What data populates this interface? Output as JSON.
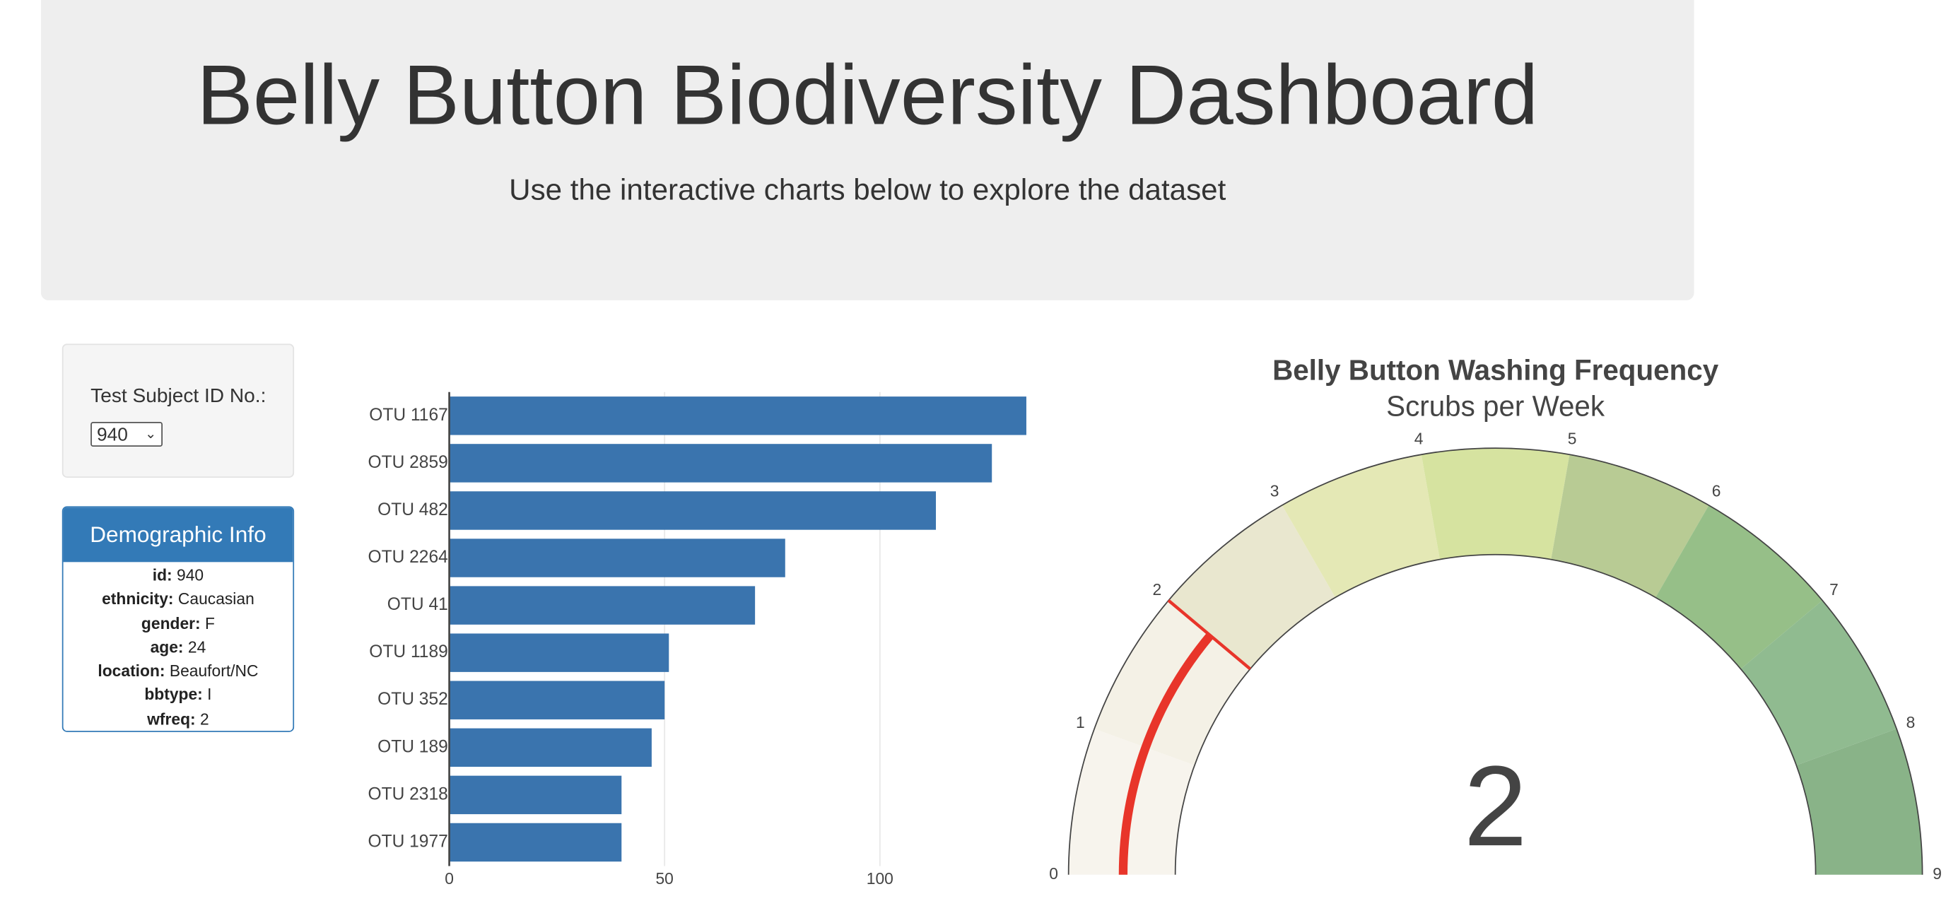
{
  "header": {
    "title": "Belly Button Biodiversity Dashboard",
    "subtitle": "Use the interactive charts below to explore the dataset"
  },
  "selector": {
    "label": "Test Subject ID No.:",
    "selected": "940"
  },
  "demographic": {
    "title": "Demographic Info",
    "rows": [
      {
        "label": "id:",
        "value": "940"
      },
      {
        "label": "ethnicity:",
        "value": "Caucasian"
      },
      {
        "label": "gender:",
        "value": "F"
      },
      {
        "label": "age:",
        "value": "24"
      },
      {
        "label": "location:",
        "value": "Beaufort/NC"
      },
      {
        "label": "bbtype:",
        "value": "I"
      },
      {
        "label": "wfreq:",
        "value": "2"
      }
    ]
  },
  "chart_data": [
    {
      "type": "hbar",
      "categories": [
        "OTU 1167",
        "OTU 2859",
        "OTU 482",
        "OTU 2264",
        "OTU 41",
        "OTU 1189",
        "OTU 352",
        "OTU 189",
        "OTU 2318",
        "OTU 1977"
      ],
      "values": [
        134,
        126,
        113,
        78,
        71,
        51,
        50,
        47,
        40,
        40
      ],
      "color": "#3a74ae",
      "xlim": [
        0,
        134
      ],
      "xticks": [
        0,
        50,
        100
      ],
      "grid": true
    },
    {
      "type": "gauge",
      "title": "Belly Button Washing Frequency",
      "subtitle": "Scrubs per Week",
      "value": 2,
      "threshold": 2,
      "bar_color": "#e8352a",
      "range": [
        0,
        9
      ],
      "ticks": [
        0,
        1,
        2,
        3,
        4,
        5,
        6,
        7,
        8,
        9
      ],
      "steps": [
        {
          "range": [
            0,
            1
          ],
          "color": "#f7f4ed"
        },
        {
          "range": [
            1,
            2
          ],
          "color": "#f4f1e6"
        },
        {
          "range": [
            2,
            3
          ],
          "color": "#e9e7cf"
        },
        {
          "range": [
            3,
            4
          ],
          "color": "#e4e8b5"
        },
        {
          "range": [
            4,
            5
          ],
          "color": "#d6e3a0"
        },
        {
          "range": [
            5,
            6
          ],
          "color": "#b8cb94"
        },
        {
          "range": [
            6,
            7
          ],
          "color": "#96bf88"
        },
        {
          "range": [
            7,
            8
          ],
          "color": "#90bb90"
        },
        {
          "range": [
            8,
            9
          ],
          "color": "#89b388"
        }
      ]
    }
  ]
}
